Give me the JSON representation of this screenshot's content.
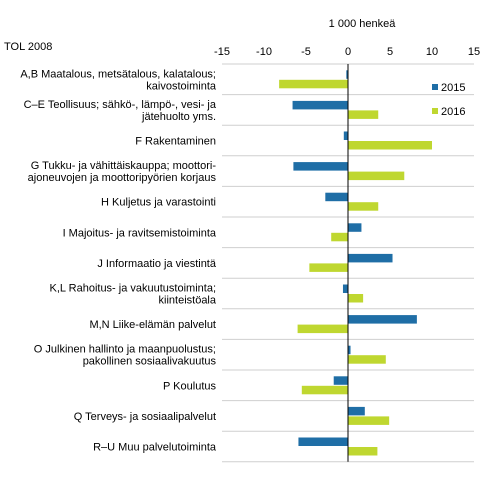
{
  "chart_data": {
    "type": "bar",
    "orientation": "horizontal",
    "title": "",
    "unit_label": "1 000 henkeä",
    "category_header": "TOL 2008",
    "xlim": [
      -15,
      15
    ],
    "ticks": [
      -15,
      -10,
      -5,
      0,
      5,
      10,
      15
    ],
    "grid": false,
    "legend_position": "top-right",
    "categories": [
      [
        "A,B Maatalous, metsätalous, kalatalous;",
        "kaivostoiminta"
      ],
      [
        "C–E Teollisuus; sähkö-, lämpö-, vesi- ja",
        "jätehuolto yms."
      ],
      [
        "F Rakentaminen"
      ],
      [
        "G Tukku- ja vähittäiskauppa; moottori-",
        "ajoneuvojen ja moottoripyörien korjaus"
      ],
      [
        "H Kuljetus ja varastointi"
      ],
      [
        "I Majoitus- ja ravitsemistoiminta"
      ],
      [
        "J Informaatio ja viestintä"
      ],
      [
        "K,L Rahoitus- ja vakuutustoiminta;",
        "kiinteistöala"
      ],
      [
        "M,N Liike-elämän palvelut"
      ],
      [
        "O Julkinen hallinto ja maanpuolustus;",
        "pakollinen sosiaalivakuutus"
      ],
      [
        "P Koulutus"
      ],
      [
        "Q Terveys- ja sosiaalipalvelut"
      ],
      [
        "R–U Muu palvelutoiminta"
      ]
    ],
    "series": [
      {
        "name": "2015",
        "color": "#1f6ea6",
        "values": [
          -0.2,
          -6.6,
          -0.5,
          -6.5,
          -2.7,
          1.6,
          5.3,
          -0.6,
          8.2,
          0.3,
          -1.7,
          2.0,
          -5.9
        ]
      },
      {
        "name": "2016",
        "color": "#bfd730",
        "values": [
          -8.2,
          3.6,
          10.0,
          6.7,
          3.6,
          -2.0,
          -4.6,
          1.8,
          -6.0,
          4.5,
          -5.5,
          4.9,
          3.5
        ]
      }
    ]
  }
}
